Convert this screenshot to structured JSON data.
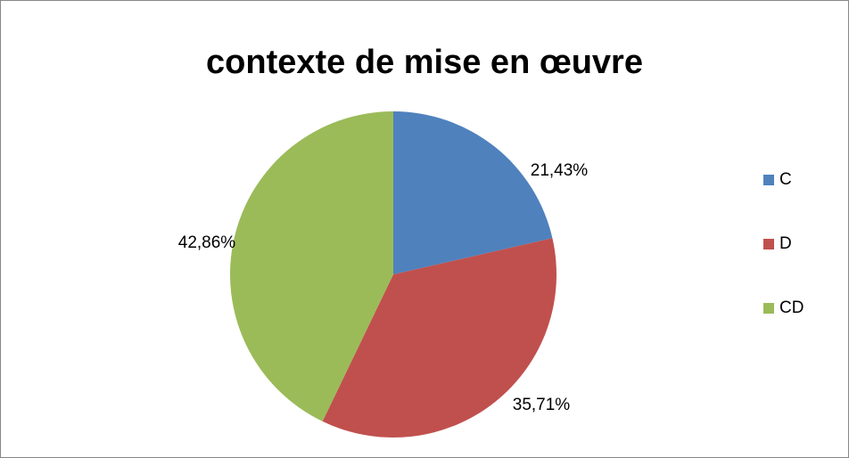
{
  "chart_data": {
    "type": "pie",
    "title": "contexte de mise en œuvre",
    "categories": [
      "C",
      "D",
      "CD"
    ],
    "values": [
      21.43,
      35.71,
      42.86
    ],
    "value_labels": [
      "21,43%",
      "35,71%",
      "42,86%"
    ],
    "colors": [
      "#4f81bd",
      "#c0504d",
      "#9bbb59"
    ],
    "legend": "right"
  }
}
